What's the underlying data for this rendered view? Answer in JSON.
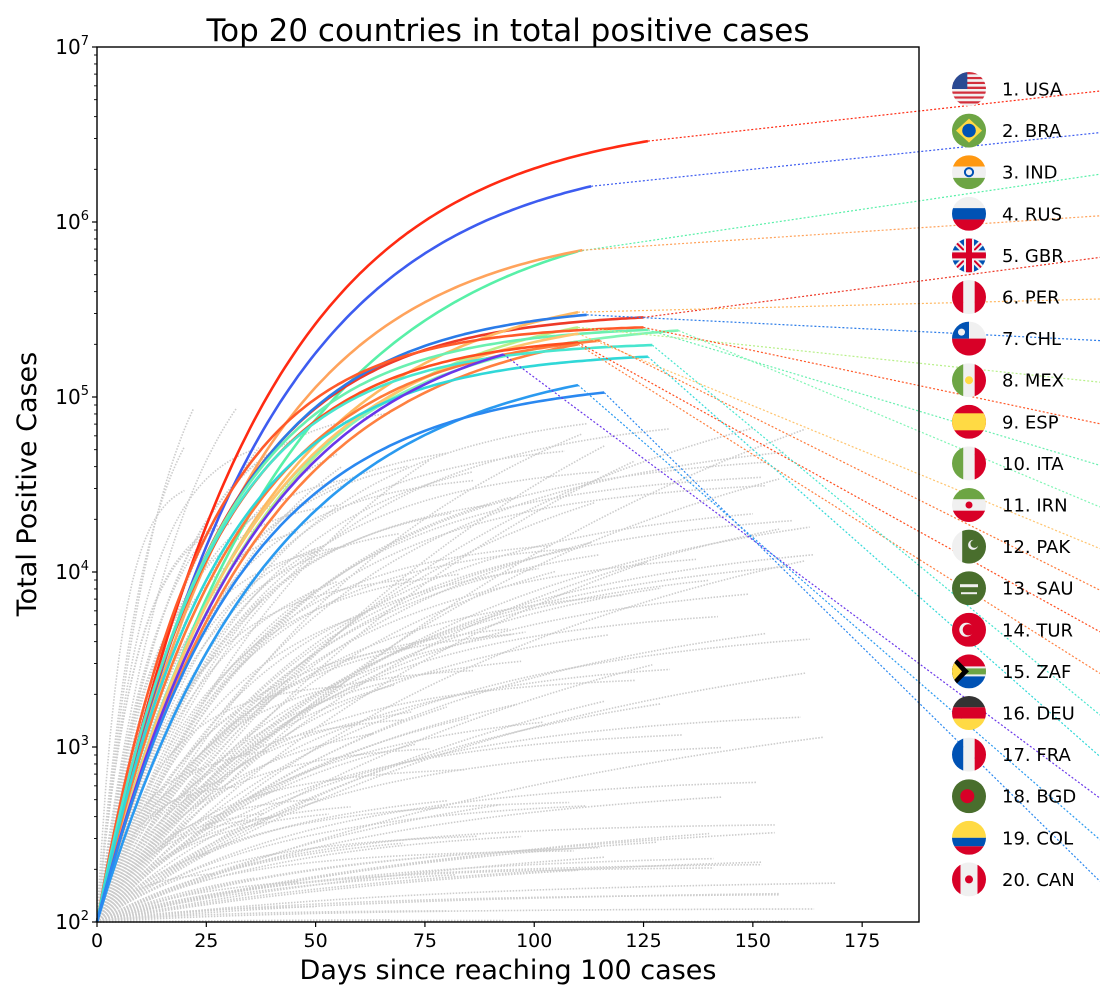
{
  "chart_data": {
    "type": "line",
    "title": "Top 20 countries in total positive cases",
    "xlabel": "Days since reaching 100 cases",
    "ylabel": "Total Positive Cases",
    "x_scale": "linear",
    "y_scale": "log",
    "xlim": [
      0,
      188
    ],
    "ylim": [
      100,
      10000000
    ],
    "x_ticks": [
      0,
      25,
      50,
      75,
      100,
      125,
      150,
      175
    ],
    "y_ticks": [
      {
        "value": 100,
        "base": "10",
        "exp": "2"
      },
      {
        "value": 1000,
        "base": "10",
        "exp": "3"
      },
      {
        "value": 10000,
        "base": "10",
        "exp": "4"
      },
      {
        "value": 100000,
        "base": "10",
        "exp": "5"
      },
      {
        "value": 1000000,
        "base": "10",
        "exp": "6"
      },
      {
        "value": 10000000,
        "base": "10",
        "exp": "7"
      }
    ],
    "grid": false,
    "legend_position": "right (outside plot, ranked flag list)",
    "series": [
      {
        "rank": 1,
        "label": "1. USA",
        "flag": "usa-flag",
        "color": "#ff2a12",
        "days": 126,
        "final": 2900000
      },
      {
        "rank": 2,
        "label": "2. BRA",
        "flag": "brazil-flag",
        "color": "#3d5cf0",
        "days": 113,
        "final": 1600000
      },
      {
        "rank": 3,
        "label": "3. IND",
        "flag": "india-flag",
        "color": "#58f0a8",
        "days": 110,
        "final": 680000
      },
      {
        "rank": 4,
        "label": "4. RUS",
        "flag": "russia-flag",
        "color": "#ffa35c",
        "days": 111,
        "final": 690000
      },
      {
        "rank": 5,
        "label": "5. GBR",
        "flag": "uk-flag",
        "color": "#ee3a28",
        "days": 125,
        "final": 285000
      },
      {
        "rank": 6,
        "label": "6. PER",
        "flag": "peru-flag",
        "color": "#ffb861",
        "days": 110,
        "final": 305000
      },
      {
        "rank": 7,
        "label": "7. CHL",
        "flag": "chile-flag",
        "color": "#2a7be8",
        "days": 112,
        "final": 295000
      },
      {
        "rank": 8,
        "label": "8. MEX",
        "flag": "mexico-flag",
        "color": "#b8f08a",
        "days": 110,
        "final": 250000
      },
      {
        "rank": 9,
        "label": "9. ESP",
        "flag": "spain-flag",
        "color": "#ff5a2a",
        "days": 125,
        "final": 250000
      },
      {
        "rank": 10,
        "label": "10. ITA",
        "flag": "italy-flag",
        "color": "#6af0b0",
        "days": 126,
        "final": 242000
      },
      {
        "rank": 11,
        "label": "11. IRN",
        "flag": "iran-flag",
        "color": "#80f5b5",
        "days": 133,
        "final": 240000
      },
      {
        "rank": 12,
        "label": "12. PAK",
        "flag": "pakistan-flag",
        "color": "#ffc46e",
        "days": 110,
        "final": 230000
      },
      {
        "rank": 13,
        "label": "13. SAU",
        "flag": "saudi-flag",
        "color": "#ff7a3a",
        "days": 115,
        "final": 210000
      },
      {
        "rank": 14,
        "label": "14. TUR",
        "flag": "turkey-flag",
        "color": "#ff4e1e",
        "days": 110,
        "final": 205000
      },
      {
        "rank": 15,
        "label": "15. ZAF",
        "flag": "south-africa-flag",
        "color": "#ff8040",
        "days": 110,
        "final": 200000
      },
      {
        "rank": 16,
        "label": "16. DEU",
        "flag": "germany-flag",
        "color": "#48e6cf",
        "days": 127,
        "final": 198000
      },
      {
        "rank": 17,
        "label": "17. FRA",
        "flag": "france-flag",
        "color": "#30d8d8",
        "days": 126,
        "final": 170000
      },
      {
        "rank": 18,
        "label": "18. BGD",
        "flag": "bangladesh-flag",
        "color": "#6a36ea",
        "days": 93,
        "final": 175000
      },
      {
        "rank": 19,
        "label": "19. COL",
        "flag": "colombia-flag",
        "color": "#2a9af0",
        "days": 110,
        "final": 117000
      },
      {
        "rank": 20,
        "label": "20. CAN",
        "flag": "canada-flag",
        "color": "#2a88f0",
        "days": 116,
        "final": 106000
      }
    ],
    "background_series": {
      "color": "#cccccc",
      "count": 150
    }
  }
}
